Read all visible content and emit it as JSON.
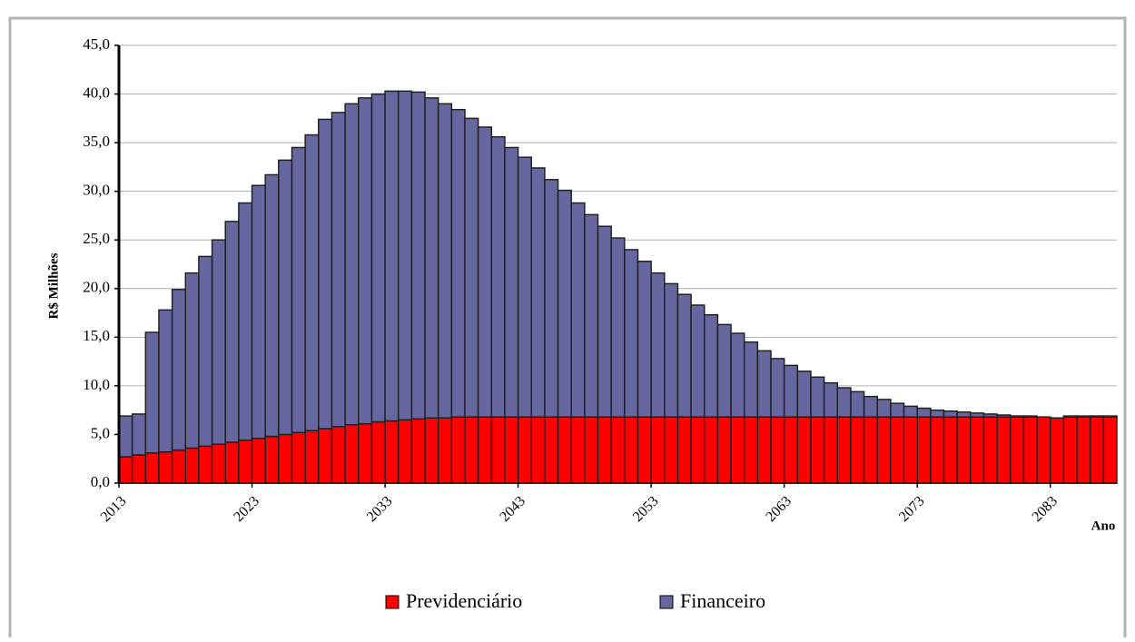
{
  "chart_data": {
    "type": "stacked_bar",
    "y_label": "R$ Milhões",
    "x_label": "Ano",
    "categories": [
      "2013",
      null,
      null,
      null,
      null,
      null,
      null,
      null,
      null,
      null,
      "2023",
      null,
      null,
      null,
      null,
      null,
      null,
      null,
      null,
      null,
      "2033",
      null,
      null,
      null,
      null,
      null,
      null,
      null,
      null,
      null,
      "2043",
      null,
      null,
      null,
      null,
      null,
      null,
      null,
      null,
      null,
      "2053",
      null,
      null,
      null,
      null,
      null,
      null,
      null,
      null,
      null,
      "2063",
      null,
      null,
      null,
      null,
      null,
      null,
      null,
      null,
      null,
      "2073",
      null,
      null,
      null,
      null,
      null,
      null,
      null,
      null,
      null,
      "2083",
      null,
      null,
      null,
      null
    ],
    "series": [
      {
        "name": "Previdenciário",
        "color": "#ff0000",
        "values": [
          2.7,
          2.9,
          3.1,
          3.2,
          3.4,
          3.6,
          3.8,
          4.0,
          4.2,
          4.4,
          4.6,
          4.8,
          5.0,
          5.2,
          5.4,
          5.6,
          5.8,
          6.0,
          6.1,
          6.3,
          6.4,
          6.5,
          6.6,
          6.7,
          6.7,
          6.8,
          6.8,
          6.8,
          6.8,
          6.8,
          6.8,
          6.8,
          6.8,
          6.8,
          6.8,
          6.8,
          6.8,
          6.8,
          6.8,
          6.8,
          6.8,
          6.8,
          6.8,
          6.8,
          6.8,
          6.8,
          6.8,
          6.8,
          6.8,
          6.8,
          6.8,
          6.8,
          6.8,
          6.8,
          6.8,
          6.8,
          6.8,
          6.8,
          6.8,
          6.8,
          6.8,
          6.8,
          6.8,
          6.8,
          6.8,
          6.8,
          6.8,
          6.8,
          6.8,
          6.8,
          6.7,
          6.8,
          6.8,
          6.8,
          6.8
        ]
      },
      {
        "name": "Financeiro",
        "color": "#6666a0",
        "values": [
          4.2,
          4.2,
          12.4,
          14.6,
          16.5,
          18.0,
          19.5,
          21.0,
          22.7,
          24.4,
          26.0,
          26.9,
          28.2,
          29.3,
          30.4,
          31.8,
          32.3,
          33.0,
          33.5,
          33.7,
          33.9,
          33.8,
          33.6,
          32.9,
          32.3,
          31.6,
          30.7,
          29.8,
          28.8,
          27.7,
          26.7,
          25.6,
          24.4,
          23.3,
          22.0,
          20.8,
          19.6,
          18.4,
          17.2,
          16.0,
          14.8,
          13.7,
          12.6,
          11.5,
          10.5,
          9.5,
          8.6,
          7.7,
          6.8,
          6.0,
          5.3,
          4.7,
          4.1,
          3.5,
          3.0,
          2.6,
          2.1,
          1.8,
          1.4,
          1.1,
          0.9,
          0.7,
          0.6,
          0.5,
          0.4,
          0.3,
          0.2,
          0.1,
          0.1,
          0,
          0,
          0.1,
          0.1,
          0.1,
          0.1
        ]
      }
    ],
    "ylim": [
      0,
      45
    ],
    "yticks": [
      {
        "value": 0,
        "label": "0,0"
      },
      {
        "value": 5,
        "label": "5,0"
      },
      {
        "value": 10,
        "label": "10,0"
      },
      {
        "value": 15,
        "label": "15,0"
      },
      {
        "value": 20,
        "label": "20,0"
      },
      {
        "value": 25,
        "label": "25,0"
      },
      {
        "value": 30,
        "label": "30,0"
      },
      {
        "value": 35,
        "label": "35,0"
      },
      {
        "value": 40,
        "label": "40,0"
      },
      {
        "value": 45,
        "label": "45,0"
      }
    ],
    "grid": true
  }
}
